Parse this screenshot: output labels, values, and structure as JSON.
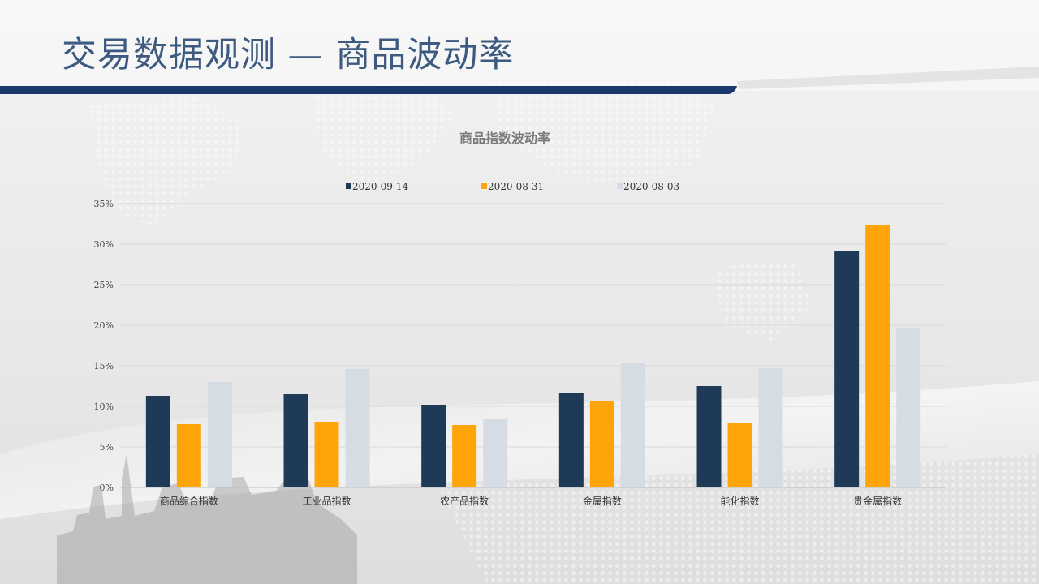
{
  "slide": {
    "title": "交易数据观测 — 商品波动率"
  },
  "colors": {
    "title": "#3d5a80",
    "header_bar": "#1b3a6b"
  },
  "chart_data": {
    "type": "bar",
    "title": "商品指数波动率",
    "categories": [
      "商品综合指数",
      "工业品指数",
      "农产品指数",
      "金属指数",
      "能化指数",
      "贵金属指数"
    ],
    "series": [
      {
        "name": "2020-09-14",
        "color": "#1f3a56",
        "values": [
          11.3,
          11.5,
          10.2,
          11.7,
          12.5,
          29.2
        ]
      },
      {
        "name": "2020-08-31",
        "color": "#ffa50a",
        "values": [
          7.8,
          8.1,
          7.7,
          10.7,
          8.0,
          32.3
        ]
      },
      {
        "name": "2020-08-03",
        "color": "#d5dce4",
        "values": [
          13.0,
          14.6,
          8.5,
          15.3,
          14.7,
          19.7
        ]
      }
    ],
    "y_ticks": [
      "0%",
      "5%",
      "10%",
      "15%",
      "20%",
      "25%",
      "30%",
      "35%"
    ],
    "ylim": [
      0,
      35
    ],
    "xlabel": "",
    "ylabel": "",
    "legend_position": "top",
    "grid": true
  }
}
